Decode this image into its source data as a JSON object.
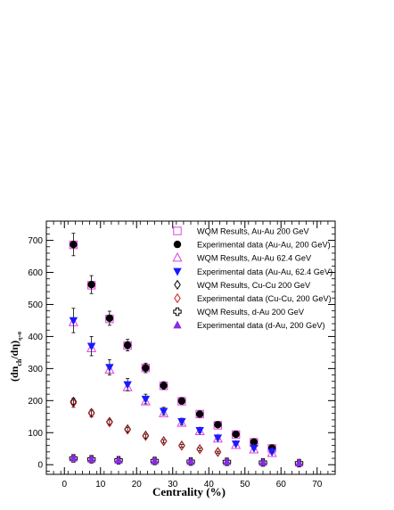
{
  "chart_data": {
    "type": "scatter",
    "xlabel": "Centrality (%)",
    "ylabel_main": "(dn",
    "ylabel_sub1": "ch",
    "ylabel_mid": "/dη)",
    "ylabel_sub2": "η=0",
    "xlim": [
      -5,
      75
    ],
    "ylim": [
      -30,
      760
    ],
    "x_ticks": [
      0,
      10,
      20,
      30,
      40,
      50,
      60,
      70
    ],
    "y_ticks": [
      0,
      100,
      200,
      300,
      400,
      500,
      600,
      700
    ],
    "x_tick_labels": [
      "0",
      "10",
      "20",
      "30",
      "40",
      "50",
      "60",
      "70"
    ],
    "y_tick_labels": [
      "0",
      "100",
      "200",
      "300",
      "400",
      "500",
      "600",
      "700"
    ],
    "legend_position": "top-right",
    "grid": false,
    "series": [
      {
        "name": "WQM Results, Au-Au 200 GeV",
        "marker": "open-square",
        "color": "#e040e0",
        "points": [
          [
            2.5,
            686
          ],
          [
            7.5,
            560
          ],
          [
            12.5,
            455
          ],
          [
            17.5,
            372
          ],
          [
            22.5,
            302
          ],
          [
            27.5,
            246
          ],
          [
            32.5,
            198
          ],
          [
            37.5,
            158
          ],
          [
            42.5,
            123
          ],
          [
            47.5,
            94
          ],
          [
            52.5,
            70
          ],
          [
            57.5,
            51
          ]
        ]
      },
      {
        "name": "Experimental data (Au-Au, 200 GeV)",
        "marker": "filled-circle",
        "color": "#000000",
        "points": [
          [
            2.5,
            687,
            35
          ],
          [
            7.5,
            562,
            28
          ],
          [
            12.5,
            457,
            22
          ],
          [
            17.5,
            373,
            18
          ],
          [
            22.5,
            302,
            15
          ],
          [
            27.5,
            247,
            12
          ],
          [
            32.5,
            199,
            10
          ],
          [
            37.5,
            158,
            8
          ],
          [
            42.5,
            125,
            7
          ],
          [
            47.5,
            95,
            6
          ],
          [
            52.5,
            71,
            5
          ],
          [
            57.5,
            52,
            4
          ]
        ]
      },
      {
        "name": "WQM Results, Au-Au 62.4 GeV",
        "marker": "open-triangle-up",
        "color": "#e040e0",
        "points": [
          [
            2.5,
            444
          ],
          [
            7.5,
            363
          ],
          [
            12.5,
            296
          ],
          [
            17.5,
            241
          ],
          [
            22.5,
            197
          ],
          [
            27.5,
            160
          ],
          [
            32.5,
            130
          ],
          [
            37.5,
            104
          ],
          [
            42.5,
            81
          ],
          [
            47.5,
            61
          ],
          [
            52.5,
            47
          ],
          [
            57.5,
            36
          ]
        ]
      },
      {
        "name": "Experimental data (Au-Au, 62.4 GeV)",
        "marker": "filled-triangle-down",
        "color": "#1a1aff",
        "points": [
          [
            2.5,
            450,
            38
          ],
          [
            7.5,
            370,
            30
          ],
          [
            12.5,
            304,
            24
          ],
          [
            17.5,
            250,
            19
          ],
          [
            22.5,
            205,
            15
          ],
          [
            27.5,
            167,
            12
          ],
          [
            32.5,
            135,
            10
          ],
          [
            37.5,
            107,
            8
          ],
          [
            42.5,
            84,
            6
          ],
          [
            47.5,
            65,
            5
          ],
          [
            52.5,
            52,
            4
          ],
          [
            57.5,
            40,
            4
          ]
        ]
      },
      {
        "name": "WQM Results, Cu-Cu 200 GeV",
        "marker": "open-diamond",
        "color": "#000000",
        "points": [
          [
            2.5,
            197
          ],
          [
            7.5,
            162
          ],
          [
            12.5,
            134
          ],
          [
            17.5,
            111
          ],
          [
            22.5,
            91
          ],
          [
            27.5,
            74
          ],
          [
            32.5,
            60
          ],
          [
            37.5,
            49
          ],
          [
            42.5,
            40
          ]
        ]
      },
      {
        "name": "Experimental data (Cu-Cu, 200 GeV)",
        "marker": "open-diamond",
        "color": "#cc2222",
        "points": [
          [
            2.5,
            193,
            14
          ],
          [
            7.5,
            160,
            11
          ],
          [
            12.5,
            132,
            9
          ],
          [
            17.5,
            109,
            7
          ],
          [
            22.5,
            89,
            6
          ],
          [
            27.5,
            73,
            5
          ],
          [
            32.5,
            59,
            4
          ],
          [
            37.5,
            48,
            4
          ],
          [
            42.5,
            39,
            3
          ]
        ]
      },
      {
        "name": "WQM Results, d-Au 200 GeV",
        "marker": "open-cross",
        "color": "#000000",
        "points": [
          [
            2.5,
            20
          ],
          [
            7.5,
            17
          ],
          [
            15,
            14
          ],
          [
            25,
            12
          ],
          [
            35,
            10
          ],
          [
            45,
            9
          ],
          [
            55,
            7
          ],
          [
            65,
            5
          ]
        ]
      },
      {
        "name": "Experimental data (d-Au, 200 GeV)",
        "marker": "filled-triangle-up",
        "color": "#8a2be2",
        "points": [
          [
            2.5,
            21,
            4
          ],
          [
            7.5,
            17,
            3
          ],
          [
            15,
            14,
            3
          ],
          [
            25,
            12,
            2
          ],
          [
            35,
            10,
            2
          ],
          [
            45,
            9,
            2
          ],
          [
            55,
            7,
            1
          ],
          [
            65,
            5,
            1
          ]
        ]
      }
    ]
  }
}
